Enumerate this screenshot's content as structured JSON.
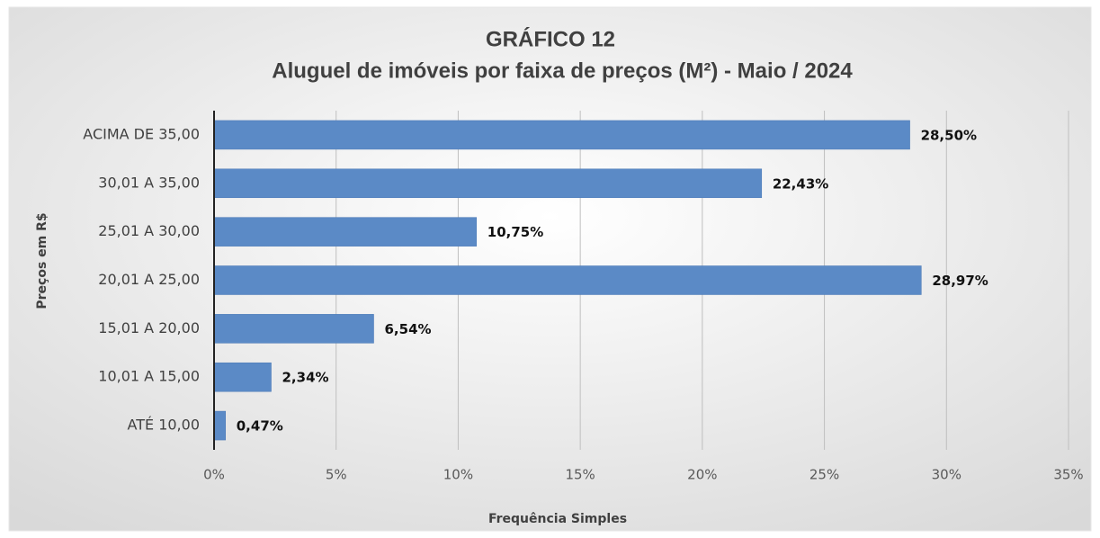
{
  "chart_data": {
    "type": "bar",
    "orientation": "horizontal",
    "title": "GRÁFICO 12",
    "subtitle": "Aluguel de imóveis por faixa de preços (M²) -  Maio /  2024",
    "x_label": "Frequência Simples",
    "y_label": "Preços em R$",
    "categories": [
      "ACIMA DE 35,00",
      "30,01 A 35,00",
      "25,01 A 30,00",
      "20,01 A 25,00",
      "15,01 A 20,00",
      "10,01 A 15,00",
      "ATÉ 10,00"
    ],
    "values": [
      28.5,
      22.43,
      10.75,
      28.97,
      6.54,
      2.34,
      0.47
    ],
    "value_labels": [
      "28,50%",
      "22,43%",
      "10,75%",
      "28,97%",
      "6,54%",
      "2,34%",
      "0,47%"
    ],
    "color": "#5b8ac6",
    "xlim": [
      0,
      35
    ],
    "xticks": [
      {
        "value": 0,
        "label": "0%"
      },
      {
        "value": 5,
        "label": "5%"
      },
      {
        "value": 10,
        "label": "10%"
      },
      {
        "value": 15,
        "label": "15%"
      },
      {
        "value": 20,
        "label": "20%"
      },
      {
        "value": 25,
        "label": "25%"
      },
      {
        "value": 30,
        "label": "30%"
      },
      {
        "value": 35,
        "label": "35%"
      }
    ],
    "grid": true
  }
}
